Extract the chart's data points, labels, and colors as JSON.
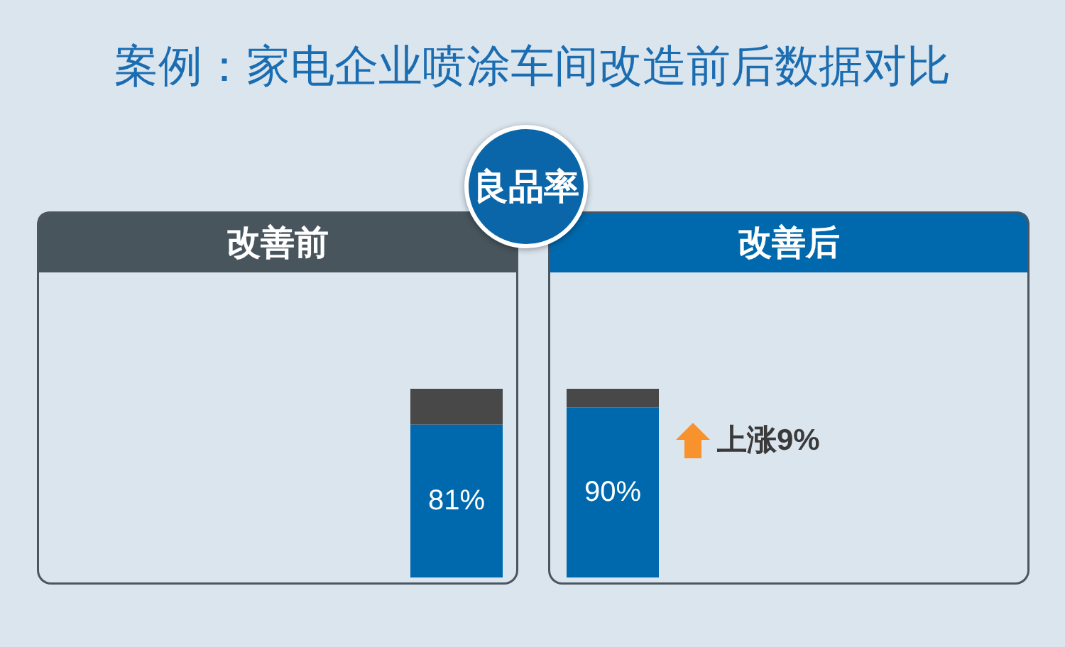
{
  "chart_data": {
    "type": "bar",
    "title": "案例：家电企业喷涂车间改造前后数据对比",
    "subtitle": "良品率",
    "categories": [
      "改善前",
      "改善后"
    ],
    "series": [
      {
        "values": [
          81,
          90
        ],
        "color": "#0068ad",
        "value_labels": [
          "81%",
          "90%"
        ]
      },
      {
        "values": [
          19,
          10
        ],
        "color": "#484848"
      }
    ],
    "stacked": true,
    "ylim": [
      0,
      100
    ],
    "tick_labels": "x",
    "annotations": [
      "上涨9%"
    ]
  }
}
